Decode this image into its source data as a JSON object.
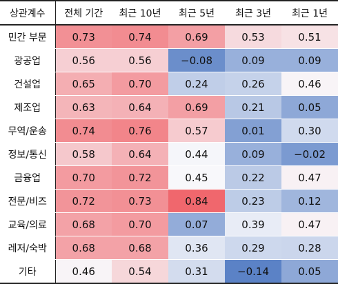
{
  "chart_data": {
    "type": "heatmap",
    "corner_label": "상관계수",
    "columns": [
      "전체 기간",
      "최근 10년",
      "최근 5년",
      "최근 3년",
      "최근 1년"
    ],
    "rows": [
      {
        "label": "민간 부문",
        "values": [
          "0.73",
          "0.74",
          "0.69",
          "0.53",
          "0.51"
        ]
      },
      {
        "label": "광공업",
        "values": [
          "0.56",
          "0.56",
          "−0.08",
          "0.09",
          "0.09"
        ]
      },
      {
        "label": "건설업",
        "values": [
          "0.65",
          "0.70",
          "0.24",
          "0.26",
          "0.46"
        ]
      },
      {
        "label": "제조업",
        "values": [
          "0.63",
          "0.64",
          "0.69",
          "0.21",
          "0.05"
        ]
      },
      {
        "label": "무역/운송",
        "values": [
          "0.74",
          "0.76",
          "0.57",
          "0.01",
          "0.30"
        ]
      },
      {
        "label": "정보/통신",
        "values": [
          "0.58",
          "0.64",
          "0.44",
          "0.09",
          "−0.02"
        ]
      },
      {
        "label": "금융업",
        "values": [
          "0.70",
          "0.72",
          "0.45",
          "0.22",
          "0.47"
        ]
      },
      {
        "label": "전문/비즈",
        "values": [
          "0.72",
          "0.73",
          "0.84",
          "0.23",
          "0.12"
        ]
      },
      {
        "label": "교육/의료",
        "values": [
          "0.68",
          "0.70",
          "0.07",
          "0.39",
          "0.47"
        ]
      },
      {
        "label": "레저/숙박",
        "values": [
          "0.68",
          "0.68",
          "0.36",
          "0.29",
          "0.28"
        ]
      },
      {
        "label": "기타",
        "values": [
          "0.46",
          "0.54",
          "0.31",
          "−0.14",
          "0.05"
        ]
      }
    ],
    "color_low": "#5b82c6",
    "color_mid": "#f8f8fb",
    "color_high": "#f0676d",
    "color_midpoint": 0.45
  }
}
